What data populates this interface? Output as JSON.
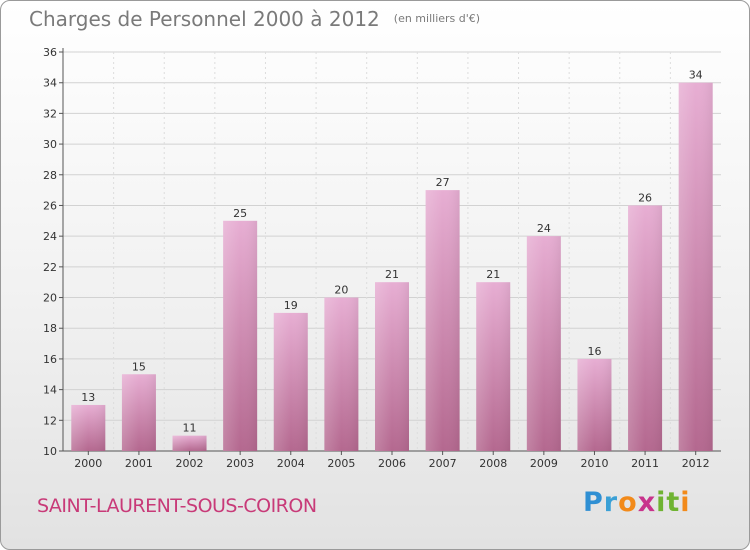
{
  "title": "Charges de Personnel 2000 à 2012",
  "subtitle": "(en milliers d'€)",
  "commune": "SAINT-LAURENT-SOUS-COIRON",
  "logo": {
    "text": "Proxiti",
    "letters": [
      "P",
      "r",
      "o",
      "x",
      "i",
      "t",
      "i"
    ],
    "letter_colors": [
      "#2f8fd3",
      "#3aa0d6",
      "#f28a1a",
      "#c8338c",
      "#6fb332",
      "#6fb332",
      "#f28a1a"
    ]
  },
  "colors": {
    "bar_light": "#e7aed3",
    "bar_dark": "#b4688f",
    "title": "#7a7a7a",
    "commune": "#c83a78"
  },
  "chart_data": {
    "type": "bar",
    "categories": [
      "2000",
      "2001",
      "2002",
      "2003",
      "2004",
      "2005",
      "2006",
      "2007",
      "2008",
      "2009",
      "2010",
      "2011",
      "2012"
    ],
    "values": [
      13,
      15,
      11,
      25,
      19,
      20,
      21,
      27,
      21,
      24,
      16,
      26,
      34
    ],
    "ylim": [
      10,
      36
    ],
    "yticks": [
      10,
      12,
      14,
      16,
      18,
      20,
      22,
      24,
      26,
      28,
      30,
      32,
      34,
      36
    ],
    "grid": true,
    "xlabel": "",
    "ylabel": ""
  }
}
